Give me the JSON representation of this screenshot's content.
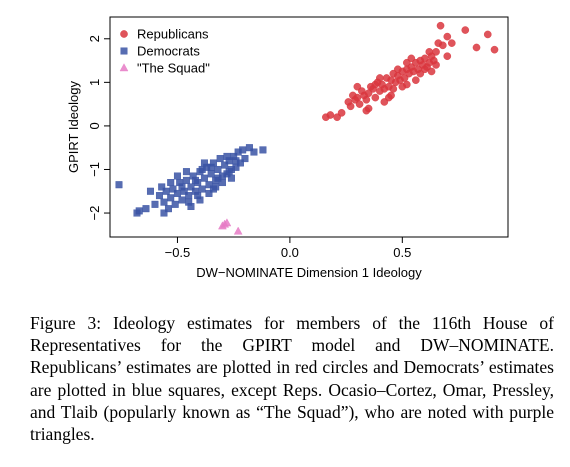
{
  "chart_data": {
    "type": "scatter",
    "xlabel": "DW−NOMINATE Dimension 1 Ideology",
    "ylabel": "GPIRT Ideology",
    "xlim": [
      -0.8,
      0.97
    ],
    "ylim": [
      -2.55,
      2.5
    ],
    "xticks": [
      -0.5,
      0.0,
      0.5
    ],
    "xtick_labels": [
      "−0.5",
      "0.0",
      "0.5"
    ],
    "yticks": [
      -2,
      -1,
      0,
      1,
      2
    ],
    "ytick_labels": [
      "−2",
      "−1",
      "0",
      "1",
      "2"
    ],
    "grid": false,
    "legend_position": "top-left",
    "series": [
      {
        "name": "Republicans",
        "marker": "circle",
        "color": "#d9363e",
        "points": [
          [
            0.16,
            0.2
          ],
          [
            0.18,
            0.25
          ],
          [
            0.21,
            0.2
          ],
          [
            0.23,
            0.3
          ],
          [
            0.26,
            0.55
          ],
          [
            0.27,
            0.45
          ],
          [
            0.28,
            0.7
          ],
          [
            0.29,
            0.6
          ],
          [
            0.3,
            0.65
          ],
          [
            0.31,
            0.5
          ],
          [
            0.32,
            0.8
          ],
          [
            0.33,
            0.7
          ],
          [
            0.34,
            0.6
          ],
          [
            0.35,
            0.75
          ],
          [
            0.36,
            0.9
          ],
          [
            0.37,
            0.85
          ],
          [
            0.38,
            0.65
          ],
          [
            0.39,
            1.0
          ],
          [
            0.4,
            0.8
          ],
          [
            0.41,
            0.95
          ],
          [
            0.42,
            0.85
          ],
          [
            0.43,
            1.1
          ],
          [
            0.44,
            0.9
          ],
          [
            0.45,
            1.05
          ],
          [
            0.46,
            1.2
          ],
          [
            0.47,
            1.0
          ],
          [
            0.48,
            1.15
          ],
          [
            0.49,
            1.05
          ],
          [
            0.5,
            1.25
          ],
          [
            0.51,
            1.1
          ],
          [
            0.52,
            1.3
          ],
          [
            0.53,
            1.2
          ],
          [
            0.54,
            1.35
          ],
          [
            0.55,
            1.25
          ],
          [
            0.56,
            1.45
          ],
          [
            0.57,
            1.3
          ],
          [
            0.58,
            1.5
          ],
          [
            0.59,
            1.4
          ],
          [
            0.6,
            1.55
          ],
          [
            0.61,
            1.35
          ],
          [
            0.62,
            1.45
          ],
          [
            0.63,
            1.6
          ],
          [
            0.64,
            1.5
          ],
          [
            0.65,
            1.7
          ],
          [
            0.66,
            1.9
          ],
          [
            0.68,
            1.85
          ],
          [
            0.7,
            2.05
          ],
          [
            0.72,
            1.9
          ],
          [
            0.67,
            2.3
          ],
          [
            0.78,
            2.2
          ],
          [
            0.88,
            2.1
          ],
          [
            0.91,
            1.75
          ],
          [
            0.83,
            1.8
          ],
          [
            0.35,
            0.4
          ],
          [
            0.45,
            0.7
          ],
          [
            0.4,
            1.1
          ],
          [
            0.52,
            0.95
          ],
          [
            0.56,
            1.05
          ],
          [
            0.48,
            1.3
          ],
          [
            0.6,
            1.3
          ],
          [
            0.63,
            1.25
          ],
          [
            0.44,
            0.65
          ],
          [
            0.38,
            0.95
          ],
          [
            0.3,
            0.9
          ],
          [
            0.5,
            0.9
          ],
          [
            0.58,
            1.2
          ],
          [
            0.65,
            1.4
          ],
          [
            0.54,
            1.55
          ],
          [
            0.42,
            0.55
          ],
          [
            0.46,
            0.85
          ],
          [
            0.52,
            1.45
          ],
          [
            0.62,
            1.7
          ],
          [
            0.7,
            1.6
          ],
          [
            0.34,
            0.35
          ]
        ]
      },
      {
        "name": "Democrats",
        "marker": "square",
        "color": "#3a53a4",
        "points": [
          [
            -0.76,
            -1.35
          ],
          [
            -0.68,
            -2.0
          ],
          [
            -0.67,
            -1.95
          ],
          [
            -0.64,
            -1.9
          ],
          [
            -0.62,
            -1.5
          ],
          [
            -0.6,
            -1.8
          ],
          [
            -0.58,
            -1.6
          ],
          [
            -0.57,
            -1.4
          ],
          [
            -0.56,
            -1.75
          ],
          [
            -0.55,
            -1.5
          ],
          [
            -0.54,
            -1.9
          ],
          [
            -0.53,
            -1.65
          ],
          [
            -0.52,
            -1.45
          ],
          [
            -0.51,
            -1.8
          ],
          [
            -0.5,
            -1.55
          ],
          [
            -0.49,
            -1.3
          ],
          [
            -0.48,
            -1.7
          ],
          [
            -0.47,
            -1.5
          ],
          [
            -0.46,
            -1.25
          ],
          [
            -0.45,
            -1.6
          ],
          [
            -0.44,
            -1.4
          ],
          [
            -0.43,
            -1.15
          ],
          [
            -0.42,
            -1.5
          ],
          [
            -0.41,
            -1.3
          ],
          [
            -0.4,
            -1.05
          ],
          [
            -0.39,
            -1.45
          ],
          [
            -0.38,
            -1.2
          ],
          [
            -0.37,
            -0.95
          ],
          [
            -0.36,
            -1.35
          ],
          [
            -0.35,
            -1.1
          ],
          [
            -0.34,
            -0.85
          ],
          [
            -0.33,
            -1.25
          ],
          [
            -0.32,
            -1.0
          ],
          [
            -0.31,
            -0.75
          ],
          [
            -0.3,
            -1.15
          ],
          [
            -0.29,
            -0.9
          ],
          [
            -0.28,
            -1.1
          ],
          [
            -0.27,
            -0.8
          ],
          [
            -0.26,
            -1.0
          ],
          [
            -0.25,
            -0.7
          ],
          [
            -0.24,
            -0.95
          ],
          [
            -0.23,
            -0.6
          ],
          [
            -0.22,
            -0.85
          ],
          [
            -0.21,
            -0.55
          ],
          [
            -0.2,
            -0.75
          ],
          [
            -0.18,
            -0.5
          ],
          [
            -0.16,
            -0.6
          ],
          [
            -0.12,
            -0.55
          ],
          [
            -0.56,
            -2.0
          ],
          [
            -0.44,
            -1.85
          ],
          [
            -0.4,
            -1.7
          ],
          [
            -0.46,
            -1.05
          ],
          [
            -0.36,
            -1.55
          ],
          [
            -0.33,
            -1.4
          ],
          [
            -0.3,
            -1.3
          ],
          [
            -0.42,
            -1.25
          ],
          [
            -0.38,
            -0.85
          ],
          [
            -0.34,
            -1.45
          ],
          [
            -0.28,
            -0.7
          ],
          [
            -0.26,
            -1.2
          ],
          [
            -0.48,
            -1.4
          ],
          [
            -0.5,
            -1.15
          ],
          [
            -0.45,
            -1.75
          ],
          [
            -0.32,
            -1.2
          ],
          [
            -0.24,
            -0.8
          ],
          [
            -0.35,
            -0.95
          ],
          [
            -0.53,
            -1.3
          ],
          [
            -0.41,
            -1.6
          ],
          [
            -0.27,
            -1.05
          ],
          [
            -0.39,
            -1.0
          ]
        ]
      },
      {
        "name": "\"The Squad\"",
        "marker": "triangle",
        "color": "#e67bc5",
        "points": [
          [
            -0.3,
            -2.3
          ],
          [
            -0.29,
            -2.26
          ],
          [
            -0.28,
            -2.23
          ],
          [
            -0.23,
            -2.42
          ]
        ]
      }
    ]
  },
  "caption": "Figure 3:  Ideology estimates for members of the 116th House of Representatives for the GPIRT model and DW–NOMINATE. Republicans’ estimates are plotted in red circles and Democrats’ estimates are plotted in blue squares, except Reps. Ocasio–Cortez, Omar, Pressley, and Tlaib (popularly known as “The Squad”), who are noted with purple triangles."
}
